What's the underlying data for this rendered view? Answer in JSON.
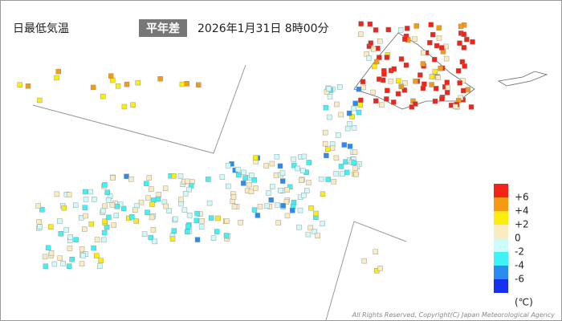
{
  "header": {
    "title": "日最低気温",
    "badge": "平年差",
    "datetime": "2026年1月31日 8時00分"
  },
  "legend": {
    "colors": [
      "#f42318",
      "#f59a13",
      "#fbee0e",
      "#fbebc0",
      "#d0fbfb",
      "#3ef2f5",
      "#2a8cf0",
      "#1530f0"
    ],
    "labels": [
      "+6",
      "+4",
      "+2",
      "0",
      "-2",
      "-4",
      "-6"
    ],
    "unit": "(℃)"
  },
  "footer": {
    "copyright": "All Rights Reserved, Copyright(C) Japan Meteorological Agency"
  }
}
